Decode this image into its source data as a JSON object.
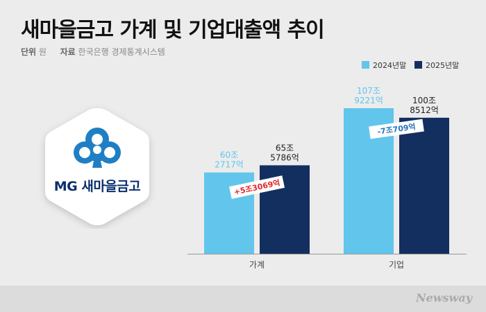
{
  "header": {
    "title": "새마을금고 가계 및 기업대출액 추이",
    "unit_key": "단위",
    "unit_value": "원",
    "source_key": "자료",
    "source_value": "한국은행 경제통계시스템"
  },
  "logo": {
    "text": "MG 새마을금고"
  },
  "footer": {
    "brand": "Newsway"
  },
  "colors": {
    "series_2024": "#62c5ec",
    "series_2025": "#132f5f",
    "increase": "#e2262b",
    "decrease": "#2a74b8",
    "baseline": "#999999"
  },
  "chart_data": {
    "type": "bar",
    "categories": [
      "가계",
      "기업"
    ],
    "series": [
      {
        "name": "2024년말",
        "values": [
          60.2717,
          107.9221
        ],
        "labels": [
          [
            "60조",
            "2717억"
          ],
          [
            "107조",
            "9221억"
          ]
        ]
      },
      {
        "name": "2025년말",
        "values": [
          65.5786,
          100.8512
        ],
        "labels": [
          [
            "65조",
            "5786억"
          ],
          [
            "100조",
            "8512억"
          ]
        ]
      }
    ],
    "annotations": [
      "+5조3069억",
      "-7조709억"
    ],
    "unit": "원",
    "legend_position": "top-right",
    "grid": false
  }
}
